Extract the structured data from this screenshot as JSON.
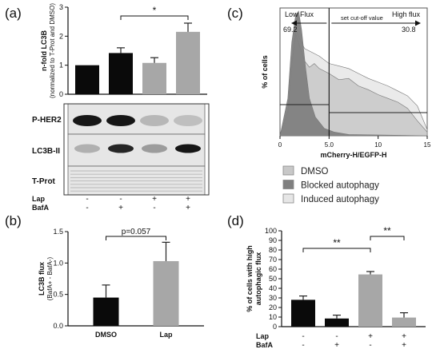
{
  "panels": {
    "a": "(a)",
    "b": "(b)",
    "c": "(c)",
    "d": "(d)"
  },
  "colors": {
    "black": "#0a0a0a",
    "gray": "#a7a7a7",
    "blot_bg": "#e6e6e6"
  },
  "chart_data": [
    {
      "id": "a",
      "type": "bar",
      "ylabel": "n-fold LC3B",
      "ylabel_sub": "(normalized to T-Prot and DMSO)",
      "ylim": [
        0,
        3
      ],
      "yticks": [
        "0",
        "1",
        "2",
        "3"
      ],
      "values": [
        1.0,
        1.42,
        1.08,
        2.15
      ],
      "errors": [
        0,
        0.18,
        0.18,
        0.3
      ],
      "bar_colors": [
        "#0a0a0a",
        "#0a0a0a",
        "#a7a7a7",
        "#a7a7a7"
      ],
      "significance": [
        {
          "from": 1,
          "to": 3,
          "label": "*"
        }
      ],
      "blot_labels": [
        "P-HER2",
        "LC3B-II",
        "T-Prot"
      ],
      "conditions": [
        {
          "name": "Lap",
          "signs": [
            "-",
            "-",
            "+",
            "+"
          ]
        },
        {
          "name": "BafA",
          "signs": [
            "-",
            "+",
            "-",
            "+"
          ]
        }
      ]
    },
    {
      "id": "b",
      "type": "bar",
      "categories": [
        "DMSO",
        "Lap"
      ],
      "values": [
        0.45,
        1.03
      ],
      "errors": [
        0.2,
        0.3
      ],
      "bar_colors": [
        "#0a0a0a",
        "#a7a7a7"
      ],
      "ylabel": "LC3B flux",
      "ylabel_sub": "(BafA+ - BafA-)",
      "ylim": [
        0,
        1.5
      ],
      "yticks": [
        "0.0",
        "0.5",
        "1.0",
        "1.5"
      ],
      "significance": [
        {
          "from": 0,
          "to": 1,
          "label": "p=0.057"
        }
      ]
    },
    {
      "id": "c",
      "type": "area",
      "xlabel": "mCherry-H/EGFP-H",
      "ylabel": "% of cells",
      "xlim": [
        0,
        15
      ],
      "xticks": [
        "0",
        "5.0",
        "10",
        "15"
      ],
      "cutoff_x": 5.0,
      "annotations": {
        "low_flux": "Low Flux",
        "low_value": "69.2",
        "cutoff": "set cut-off value",
        "high_flux": "High flux",
        "high_value": "30.8"
      },
      "series": [
        {
          "name": "DMSO",
          "color": "#c8c8c8",
          "x": [
            0,
            0.8,
            1.2,
            1.6,
            2.0,
            2.5,
            3.0,
            3.5,
            4.0,
            5.0,
            6.0,
            7.0,
            8.0,
            9.0,
            10.0,
            11.0,
            12.0,
            13.0,
            14.0,
            15.0
          ],
          "y": [
            0,
            20,
            58,
            82,
            72,
            60,
            55,
            58,
            54,
            50,
            45,
            46,
            40,
            37,
            33,
            30,
            27,
            22,
            12,
            3
          ]
        },
        {
          "name": "Blocked autophagy",
          "color": "#7f7f7f",
          "x": [
            0,
            0.8,
            1.2,
            1.6,
            1.9,
            2.2,
            2.6,
            3.0,
            3.6,
            4.5,
            5.5,
            7.0,
            15.0
          ],
          "y": [
            0,
            30,
            75,
            97,
            100,
            85,
            55,
            30,
            15,
            6,
            3,
            1,
            0
          ]
        },
        {
          "name": "Induced autophagy",
          "color": "#e6e6e6",
          "x": [
            0,
            0.8,
            1.2,
            1.6,
            2.0,
            2.5,
            3.0,
            4.0,
            5.0,
            6.0,
            7.0,
            8.0,
            9.0,
            10.0,
            11.0,
            12.0,
            13.0,
            14.0,
            15.0
          ],
          "y": [
            0,
            15,
            50,
            86,
            78,
            70,
            68,
            64,
            58,
            56,
            54,
            50,
            46,
            43,
            40,
            36,
            32,
            24,
            5
          ]
        }
      ]
    },
    {
      "id": "d",
      "type": "bar",
      "ylabel": "% of cells with high",
      "ylabel2": "autophagic flux",
      "ylim": [
        0,
        100
      ],
      "yticks": [
        "0",
        "10",
        "20",
        "30",
        "40",
        "50",
        "60",
        "70",
        "80",
        "90",
        "100"
      ],
      "values": [
        28,
        8.5,
        54.5,
        9.5
      ],
      "errors": [
        4,
        3.5,
        3,
        5
      ],
      "bar_colors": [
        "#0a0a0a",
        "#0a0a0a",
        "#a7a7a7",
        "#a7a7a7"
      ],
      "significance": [
        {
          "from": 0,
          "to": 2,
          "label": "**"
        },
        {
          "from": 2,
          "to": 3,
          "label": "**"
        }
      ],
      "conditions": [
        {
          "name": "Lap",
          "signs": [
            "-",
            "-",
            "+",
            "+"
          ]
        },
        {
          "name": "BafA",
          "signs": [
            "-",
            "+",
            "-",
            "+"
          ]
        }
      ]
    }
  ]
}
